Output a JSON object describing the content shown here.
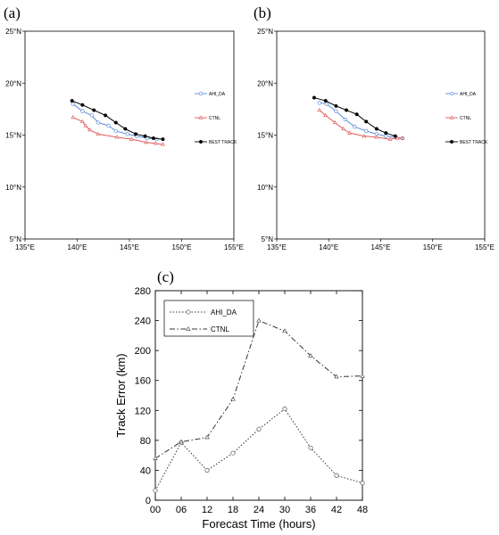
{
  "panels": {
    "a": {
      "label": "(a)"
    },
    "b": {
      "label": "(b)"
    },
    "c": {
      "label": "(c)"
    }
  },
  "chart_data": [
    {
      "type": "line",
      "panel": "a",
      "xlim": [
        135,
        155
      ],
      "ylim": [
        5,
        25
      ],
      "x_ticks": [
        "135°E",
        "140°E",
        "145°E",
        "150°E",
        "155°E"
      ],
      "y_ticks": [
        "5°N",
        "10°N",
        "15°N",
        "20°N",
        "25°N"
      ],
      "legend_position": "right",
      "series": [
        {
          "name": "AHI_DA",
          "color": "#5b8fd6",
          "marker": "open-circle",
          "points": [
            [
              139.6,
              18.0
            ],
            [
              140.5,
              17.3
            ],
            [
              141.4,
              16.9
            ],
            [
              142.0,
              16.2
            ],
            [
              143.0,
              15.9
            ],
            [
              143.7,
              15.4
            ],
            [
              144.8,
              15.1
            ],
            [
              145.7,
              14.9
            ],
            [
              146.7,
              14.7
            ],
            [
              147.6,
              14.6
            ]
          ]
        },
        {
          "name": "CTNL",
          "color": "#e05a5a",
          "marker": "open-triangle",
          "points": [
            [
              139.6,
              16.7
            ],
            [
              140.5,
              16.3
            ],
            [
              140.8,
              15.9
            ],
            [
              141.2,
              15.5
            ],
            [
              142.0,
              15.1
            ],
            [
              143.8,
              14.8
            ],
            [
              145.2,
              14.6
            ],
            [
              146.6,
              14.3
            ],
            [
              147.5,
              14.2
            ],
            [
              148.2,
              14.1
            ]
          ]
        },
        {
          "name": "BEST TRACK",
          "color": "#000000",
          "marker": "filled-circle",
          "points": [
            [
              139.5,
              18.3
            ],
            [
              140.5,
              17.9
            ],
            [
              141.6,
              17.4
            ],
            [
              142.7,
              16.9
            ],
            [
              143.7,
              16.2
            ],
            [
              144.6,
              15.6
            ],
            [
              145.6,
              15.1
            ],
            [
              146.5,
              14.9
            ],
            [
              147.3,
              14.7
            ],
            [
              148.2,
              14.6
            ]
          ]
        }
      ]
    },
    {
      "type": "line",
      "panel": "b",
      "xlim": [
        135,
        155
      ],
      "ylim": [
        5,
        25
      ],
      "x_ticks": [
        "135°E",
        "140°E",
        "145°E",
        "150°E",
        "155°E"
      ],
      "y_ticks": [
        "5°N",
        "10°N",
        "15°N",
        "20°N",
        "25°N"
      ],
      "legend_position": "right",
      "series": [
        {
          "name": "AHI_DA",
          "color": "#5b8fd6",
          "marker": "open-circle",
          "points": [
            [
              139.1,
              18.1
            ],
            [
              139.8,
              18.0
            ],
            [
              140.7,
              17.3
            ],
            [
              141.6,
              16.5
            ],
            [
              142.5,
              15.8
            ],
            [
              143.6,
              15.4
            ],
            [
              144.6,
              15.1
            ],
            [
              145.5,
              14.9
            ],
            [
              146.3,
              14.8
            ],
            [
              147.1,
              14.7
            ]
          ]
        },
        {
          "name": "CTNL",
          "color": "#e05a5a",
          "marker": "open-triangle",
          "points": [
            [
              139.1,
              17.4
            ],
            [
              139.7,
              16.9
            ],
            [
              140.6,
              16.2
            ],
            [
              141.4,
              15.6
            ],
            [
              142.0,
              15.2
            ],
            [
              143.4,
              14.9
            ],
            [
              144.6,
              14.8
            ],
            [
              145.9,
              14.6
            ],
            [
              146.6,
              14.7
            ],
            [
              147.1,
              14.7
            ]
          ]
        },
        {
          "name": "BEST TRACK",
          "color": "#000000",
          "marker": "filled-circle",
          "points": [
            [
              138.6,
              18.6
            ],
            [
              139.7,
              18.3
            ],
            [
              140.7,
              17.8
            ],
            [
              141.7,
              17.4
            ],
            [
              142.7,
              17.0
            ],
            [
              143.6,
              16.3
            ],
            [
              144.6,
              15.6
            ],
            [
              145.5,
              15.2
            ],
            [
              146.4,
              14.9
            ]
          ]
        }
      ]
    },
    {
      "type": "line",
      "panel": "c",
      "categories": [
        "00",
        "06",
        "12",
        "18",
        "24",
        "30",
        "36",
        "42",
        "48"
      ],
      "xlabel": "Forecast Time (hours)",
      "ylabel": "Track Error (km)",
      "ylim": [
        0,
        280
      ],
      "y_ticks": [
        "0",
        "40",
        "80",
        "120",
        "160",
        "200",
        "240",
        "280"
      ],
      "legend_position": "top-left",
      "series": [
        {
          "name": "AHI_DA",
          "dash": "dotted",
          "marker": "open-circle",
          "values": [
            13,
            77,
            40,
            63,
            95,
            122,
            70,
            33,
            23
          ]
        },
        {
          "name": "CTNL",
          "dash": "dash-dot",
          "marker": "open-triangle",
          "values": [
            56,
            78,
            84,
            135,
            240,
            226,
            193,
            165,
            166
          ]
        }
      ]
    }
  ]
}
